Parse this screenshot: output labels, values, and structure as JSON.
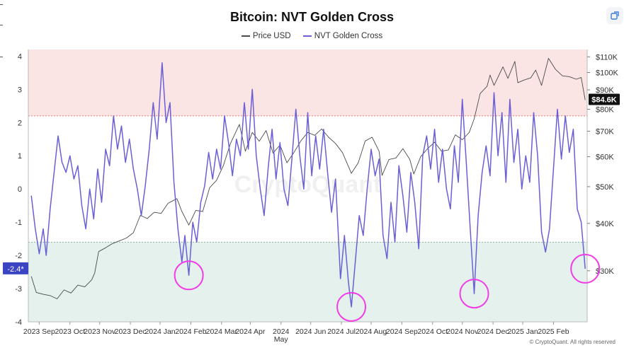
{
  "title": "Bitcoin: NVT Golden Cross",
  "legend": {
    "price": "Price USD",
    "nvt": "NVT Golden Cross"
  },
  "share_icon": "share-link-icon",
  "watermark": "CryptoQuant",
  "footer": "© CryptoQuant. All rights reserved",
  "colors": {
    "price": "#4a4a4a",
    "nvt": "#6b5fd6",
    "top_zone": "#fbe4e4",
    "bottom_zone": "#e4f1ec",
    "top_line": "#d9534f",
    "bottom_line": "#7aa98b",
    "circle": "#f23ce6",
    "current_price_bg": "#111111",
    "current_nvt_bg": "#3b45c4"
  },
  "chart_data": {
    "type": "line",
    "title": "Bitcoin: NVT Golden Cross",
    "x_tick_labels": [
      "2023 Sep",
      "2023 Oct",
      "2023 Nov",
      "2023 Dec",
      "2024 Jan",
      "2024 Feb",
      "2024 Mar",
      "2024 Apr",
      "2024 May",
      "2024 Jun",
      "2024 Jul",
      "2024 Aug",
      "2024 Sep",
      "2024 Oct",
      "2024 Nov",
      "2024 Dec",
      "2025 Jan",
      "2025 Feb"
    ],
    "left_axis": {
      "ticks": [
        "4",
        "3",
        "2",
        "1",
        "0",
        "-1",
        "-2",
        "-3",
        "-4"
      ],
      "ylim": [
        -4,
        4.2
      ]
    },
    "right_axis": {
      "ticks": [
        "$110K",
        "$100K",
        "$90K",
        "$80K",
        "$70K",
        "$60K",
        "$50K",
        "$40K",
        "$30K"
      ],
      "scale": "log",
      "ylim": [
        22000,
        115000
      ]
    },
    "zones": {
      "upper_threshold": 2.2,
      "lower_threshold": -1.6
    },
    "current_values": {
      "price_label": "$84.6K",
      "nvt_label": "-2.4*"
    },
    "highlight_circles": [
      {
        "date": "2024-01-23",
        "value": -2.6
      },
      {
        "date": "2024-07-05",
        "value": -3.55
      },
      {
        "date": "2024-11-06",
        "value": -3.15
      },
      {
        "date": "2025-02-26",
        "value": -2.4
      }
    ],
    "series": [
      {
        "name": "Price USD",
        "axis": "right",
        "points": [
          [
            "2023-08-17",
            29000
          ],
          [
            "2023-08-22",
            26300
          ],
          [
            "2023-08-29",
            26000
          ],
          [
            "2023-09-05",
            25800
          ],
          [
            "2023-09-12",
            25300
          ],
          [
            "2023-09-19",
            26700
          ],
          [
            "2023-09-26",
            26200
          ],
          [
            "2023-10-03",
            27500
          ],
          [
            "2023-10-10",
            27200
          ],
          [
            "2023-10-17",
            28400
          ],
          [
            "2023-10-20",
            29600
          ],
          [
            "2023-10-24",
            33700
          ],
          [
            "2023-10-31",
            34500
          ],
          [
            "2023-11-07",
            35400
          ],
          [
            "2023-11-14",
            36000
          ],
          [
            "2023-11-21",
            36600
          ],
          [
            "2023-11-28",
            37800
          ],
          [
            "2023-12-05",
            42000
          ],
          [
            "2023-12-12",
            41200
          ],
          [
            "2023-12-19",
            42800
          ],
          [
            "2023-12-26",
            42500
          ],
          [
            "2024-01-02",
            45200
          ],
          [
            "2024-01-11",
            46500
          ],
          [
            "2024-01-16",
            43000
          ],
          [
            "2024-01-23",
            39600
          ],
          [
            "2024-01-30",
            43300
          ],
          [
            "2024-02-06",
            43000
          ],
          [
            "2024-02-13",
            49700
          ],
          [
            "2024-02-20",
            52000
          ],
          [
            "2024-02-27",
            57000
          ],
          [
            "2024-03-05",
            65000
          ],
          [
            "2024-03-14",
            73000
          ],
          [
            "2024-03-20",
            62000
          ],
          [
            "2024-03-27",
            69500
          ],
          [
            "2024-04-03",
            65900
          ],
          [
            "2024-04-10",
            70300
          ],
          [
            "2024-04-17",
            61300
          ],
          [
            "2024-04-24",
            64400
          ],
          [
            "2024-05-01",
            57800
          ],
          [
            "2024-05-08",
            61500
          ],
          [
            "2024-05-15",
            66000
          ],
          [
            "2024-05-22",
            69500
          ],
          [
            "2024-05-29",
            68300
          ],
          [
            "2024-06-05",
            71000
          ],
          [
            "2024-06-12",
            67500
          ],
          [
            "2024-06-19",
            65000
          ],
          [
            "2024-06-26",
            61500
          ],
          [
            "2024-07-05",
            54200
          ],
          [
            "2024-07-12",
            57800
          ],
          [
            "2024-07-19",
            66000
          ],
          [
            "2024-07-26",
            67500
          ],
          [
            "2024-08-02",
            62000
          ],
          [
            "2024-08-05",
            53500
          ],
          [
            "2024-08-12",
            59000
          ],
          [
            "2024-08-19",
            59500
          ],
          [
            "2024-08-26",
            63000
          ],
          [
            "2024-09-02",
            59000
          ],
          [
            "2024-09-06",
            54000
          ],
          [
            "2024-09-13",
            60000
          ],
          [
            "2024-09-20",
            63000
          ],
          [
            "2024-09-27",
            65500
          ],
          [
            "2024-10-04",
            62000
          ],
          [
            "2024-10-11",
            62500
          ],
          [
            "2024-10-18",
            68500
          ],
          [
            "2024-10-25",
            66500
          ],
          [
            "2024-11-01",
            69500
          ],
          [
            "2024-11-06",
            75500
          ],
          [
            "2024-11-12",
            88000
          ],
          [
            "2024-11-19",
            92000
          ],
          [
            "2024-11-22",
            98500
          ],
          [
            "2024-11-26",
            92500
          ],
          [
            "2024-12-05",
            103500
          ],
          [
            "2024-12-10",
            96500
          ],
          [
            "2024-12-17",
            107000
          ],
          [
            "2024-12-20",
            94000
          ],
          [
            "2024-12-26",
            95500
          ],
          [
            "2025-01-02",
            96800
          ],
          [
            "2025-01-07",
            101500
          ],
          [
            "2025-01-13",
            92500
          ],
          [
            "2025-01-20",
            109000
          ],
          [
            "2025-01-27",
            102000
          ],
          [
            "2025-02-03",
            98000
          ],
          [
            "2025-02-10",
            97500
          ],
          [
            "2025-02-17",
            96000
          ],
          [
            "2025-02-22",
            97000
          ],
          [
            "2025-02-26",
            84600
          ]
        ]
      },
      {
        "name": "NVT Golden Cross",
        "axis": "left",
        "points": [
          [
            "2023-08-17",
            -0.2
          ],
          [
            "2023-08-21",
            -1.2
          ],
          [
            "2023-08-25",
            -1.95
          ],
          [
            "2023-08-29",
            -1.2
          ],
          [
            "2023-09-01",
            -2.0
          ],
          [
            "2023-09-05",
            -0.6
          ],
          [
            "2023-09-09",
            0.5
          ],
          [
            "2023-09-13",
            1.6
          ],
          [
            "2023-09-17",
            0.8
          ],
          [
            "2023-09-21",
            0.5
          ],
          [
            "2023-09-25",
            1.0
          ],
          [
            "2023-09-29",
            0.3
          ],
          [
            "2023-10-03",
            0.7
          ],
          [
            "2023-10-07",
            -0.5
          ],
          [
            "2023-10-11",
            -1.2
          ],
          [
            "2023-10-15",
            0.0
          ],
          [
            "2023-10-19",
            -0.9
          ],
          [
            "2023-10-23",
            0.6
          ],
          [
            "2023-10-27",
            -0.4
          ],
          [
            "2023-10-31",
            1.2
          ],
          [
            "2023-11-04",
            0.7
          ],
          [
            "2023-11-08",
            2.2
          ],
          [
            "2023-11-12",
            1.2
          ],
          [
            "2023-11-16",
            1.9
          ],
          [
            "2023-11-20",
            0.8
          ],
          [
            "2023-11-24",
            1.5
          ],
          [
            "2023-11-28",
            0.6
          ],
          [
            "2023-12-02",
            0.0
          ],
          [
            "2023-12-06",
            -0.8
          ],
          [
            "2023-12-10",
            0.1
          ],
          [
            "2023-12-14",
            1.2
          ],
          [
            "2023-12-18",
            2.6
          ],
          [
            "2023-12-22",
            1.5
          ],
          [
            "2023-12-27",
            3.8
          ],
          [
            "2023-12-31",
            2.0
          ],
          [
            "2024-01-04",
            2.6
          ],
          [
            "2024-01-08",
            0.2
          ],
          [
            "2024-01-12",
            -1.2
          ],
          [
            "2024-01-16",
            -2.2
          ],
          [
            "2024-01-19",
            -1.4
          ],
          [
            "2024-01-23",
            -2.6
          ],
          [
            "2024-01-27",
            -1.0
          ],
          [
            "2024-01-31",
            -1.6
          ],
          [
            "2024-02-04",
            -0.4
          ],
          [
            "2024-02-08",
            0.1
          ],
          [
            "2024-02-12",
            1.1
          ],
          [
            "2024-02-16",
            0.3
          ],
          [
            "2024-02-20",
            1.2
          ],
          [
            "2024-02-24",
            0.6
          ],
          [
            "2024-02-28",
            2.2
          ],
          [
            "2024-03-03",
            1.4
          ],
          [
            "2024-03-07",
            0.4
          ],
          [
            "2024-03-11",
            1.5
          ],
          [
            "2024-03-15",
            1.0
          ],
          [
            "2024-03-19",
            2.6
          ],
          [
            "2024-03-23",
            1.2
          ],
          [
            "2024-03-27",
            3.0
          ],
          [
            "2024-03-31",
            1.0
          ],
          [
            "2024-04-04",
            0.0
          ],
          [
            "2024-04-08",
            -0.8
          ],
          [
            "2024-04-12",
            0.6
          ],
          [
            "2024-04-16",
            1.8
          ],
          [
            "2024-04-20",
            0.3
          ],
          [
            "2024-04-24",
            1.4
          ],
          [
            "2024-04-28",
            0.0
          ],
          [
            "2024-05-02",
            -0.5
          ],
          [
            "2024-05-06",
            0.9
          ],
          [
            "2024-05-10",
            2.4
          ],
          [
            "2024-05-14",
            1.0
          ],
          [
            "2024-05-18",
            0.0
          ],
          [
            "2024-05-22",
            2.3
          ],
          [
            "2024-05-26",
            0.4
          ],
          [
            "2024-05-30",
            1.6
          ],
          [
            "2024-06-03",
            0.6
          ],
          [
            "2024-06-07",
            1.8
          ],
          [
            "2024-06-11",
            0.5
          ],
          [
            "2024-06-15",
            -0.7
          ],
          [
            "2024-06-19",
            0.3
          ],
          [
            "2024-06-24",
            -2.7
          ],
          [
            "2024-06-28",
            -1.4
          ],
          [
            "2024-07-02",
            -2.8
          ],
          [
            "2024-07-05",
            -3.55
          ],
          [
            "2024-07-09",
            -2.2
          ],
          [
            "2024-07-13",
            -0.8
          ],
          [
            "2024-07-17",
            -1.4
          ],
          [
            "2024-07-21",
            0.0
          ],
          [
            "2024-07-25",
            1.2
          ],
          [
            "2024-07-29",
            0.4
          ],
          [
            "2024-08-02",
            0.9
          ],
          [
            "2024-08-06",
            -1.4
          ],
          [
            "2024-08-10",
            -2.1
          ],
          [
            "2024-08-14",
            -0.4
          ],
          [
            "2024-08-18",
            -1.6
          ],
          [
            "2024-08-22",
            0.7
          ],
          [
            "2024-08-26",
            -0.2
          ],
          [
            "2024-08-30",
            -1.3
          ],
          [
            "2024-09-03",
            0.5
          ],
          [
            "2024-09-07",
            -0.4
          ],
          [
            "2024-09-11",
            -1.8
          ],
          [
            "2024-09-15",
            1.0
          ],
          [
            "2024-09-19",
            1.6
          ],
          [
            "2024-09-23",
            0.6
          ],
          [
            "2024-09-27",
            1.8
          ],
          [
            "2024-10-01",
            0.2
          ],
          [
            "2024-10-05",
            1.2
          ],
          [
            "2024-10-09",
            0.0
          ],
          [
            "2024-10-13",
            -0.6
          ],
          [
            "2024-10-17",
            1.3
          ],
          [
            "2024-10-21",
            0.2
          ],
          [
            "2024-10-25",
            2.7
          ],
          [
            "2024-10-29",
            0.8
          ],
          [
            "2024-11-02",
            -1.2
          ],
          [
            "2024-11-06",
            -3.15
          ],
          [
            "2024-11-10",
            -0.8
          ],
          [
            "2024-11-14",
            0.5
          ],
          [
            "2024-11-18",
            1.3
          ],
          [
            "2024-11-22",
            0.4
          ],
          [
            "2024-11-26",
            2.9
          ],
          [
            "2024-11-30",
            1.0
          ],
          [
            "2024-12-04",
            2.3
          ],
          [
            "2024-12-08",
            0.2
          ],
          [
            "2024-12-12",
            2.7
          ],
          [
            "2024-12-16",
            0.8
          ],
          [
            "2024-12-20",
            1.8
          ],
          [
            "2024-12-24",
            0.0
          ],
          [
            "2024-12-28",
            1.0
          ],
          [
            "2025-01-01",
            0.2
          ],
          [
            "2025-01-05",
            2.3
          ],
          [
            "2025-01-09",
            1.0
          ],
          [
            "2025-01-13",
            -1.3
          ],
          [
            "2025-01-17",
            -1.9
          ],
          [
            "2025-01-21",
            -1.2
          ],
          [
            "2025-01-25",
            0.6
          ],
          [
            "2025-01-29",
            2.4
          ],
          [
            "2025-02-02",
            0.9
          ],
          [
            "2025-02-06",
            2.2
          ],
          [
            "2025-02-10",
            1.1
          ],
          [
            "2025-02-14",
            1.8
          ],
          [
            "2025-02-18",
            -0.6
          ],
          [
            "2025-02-22",
            -1.0
          ],
          [
            "2025-02-26",
            -2.4
          ]
        ]
      }
    ]
  }
}
